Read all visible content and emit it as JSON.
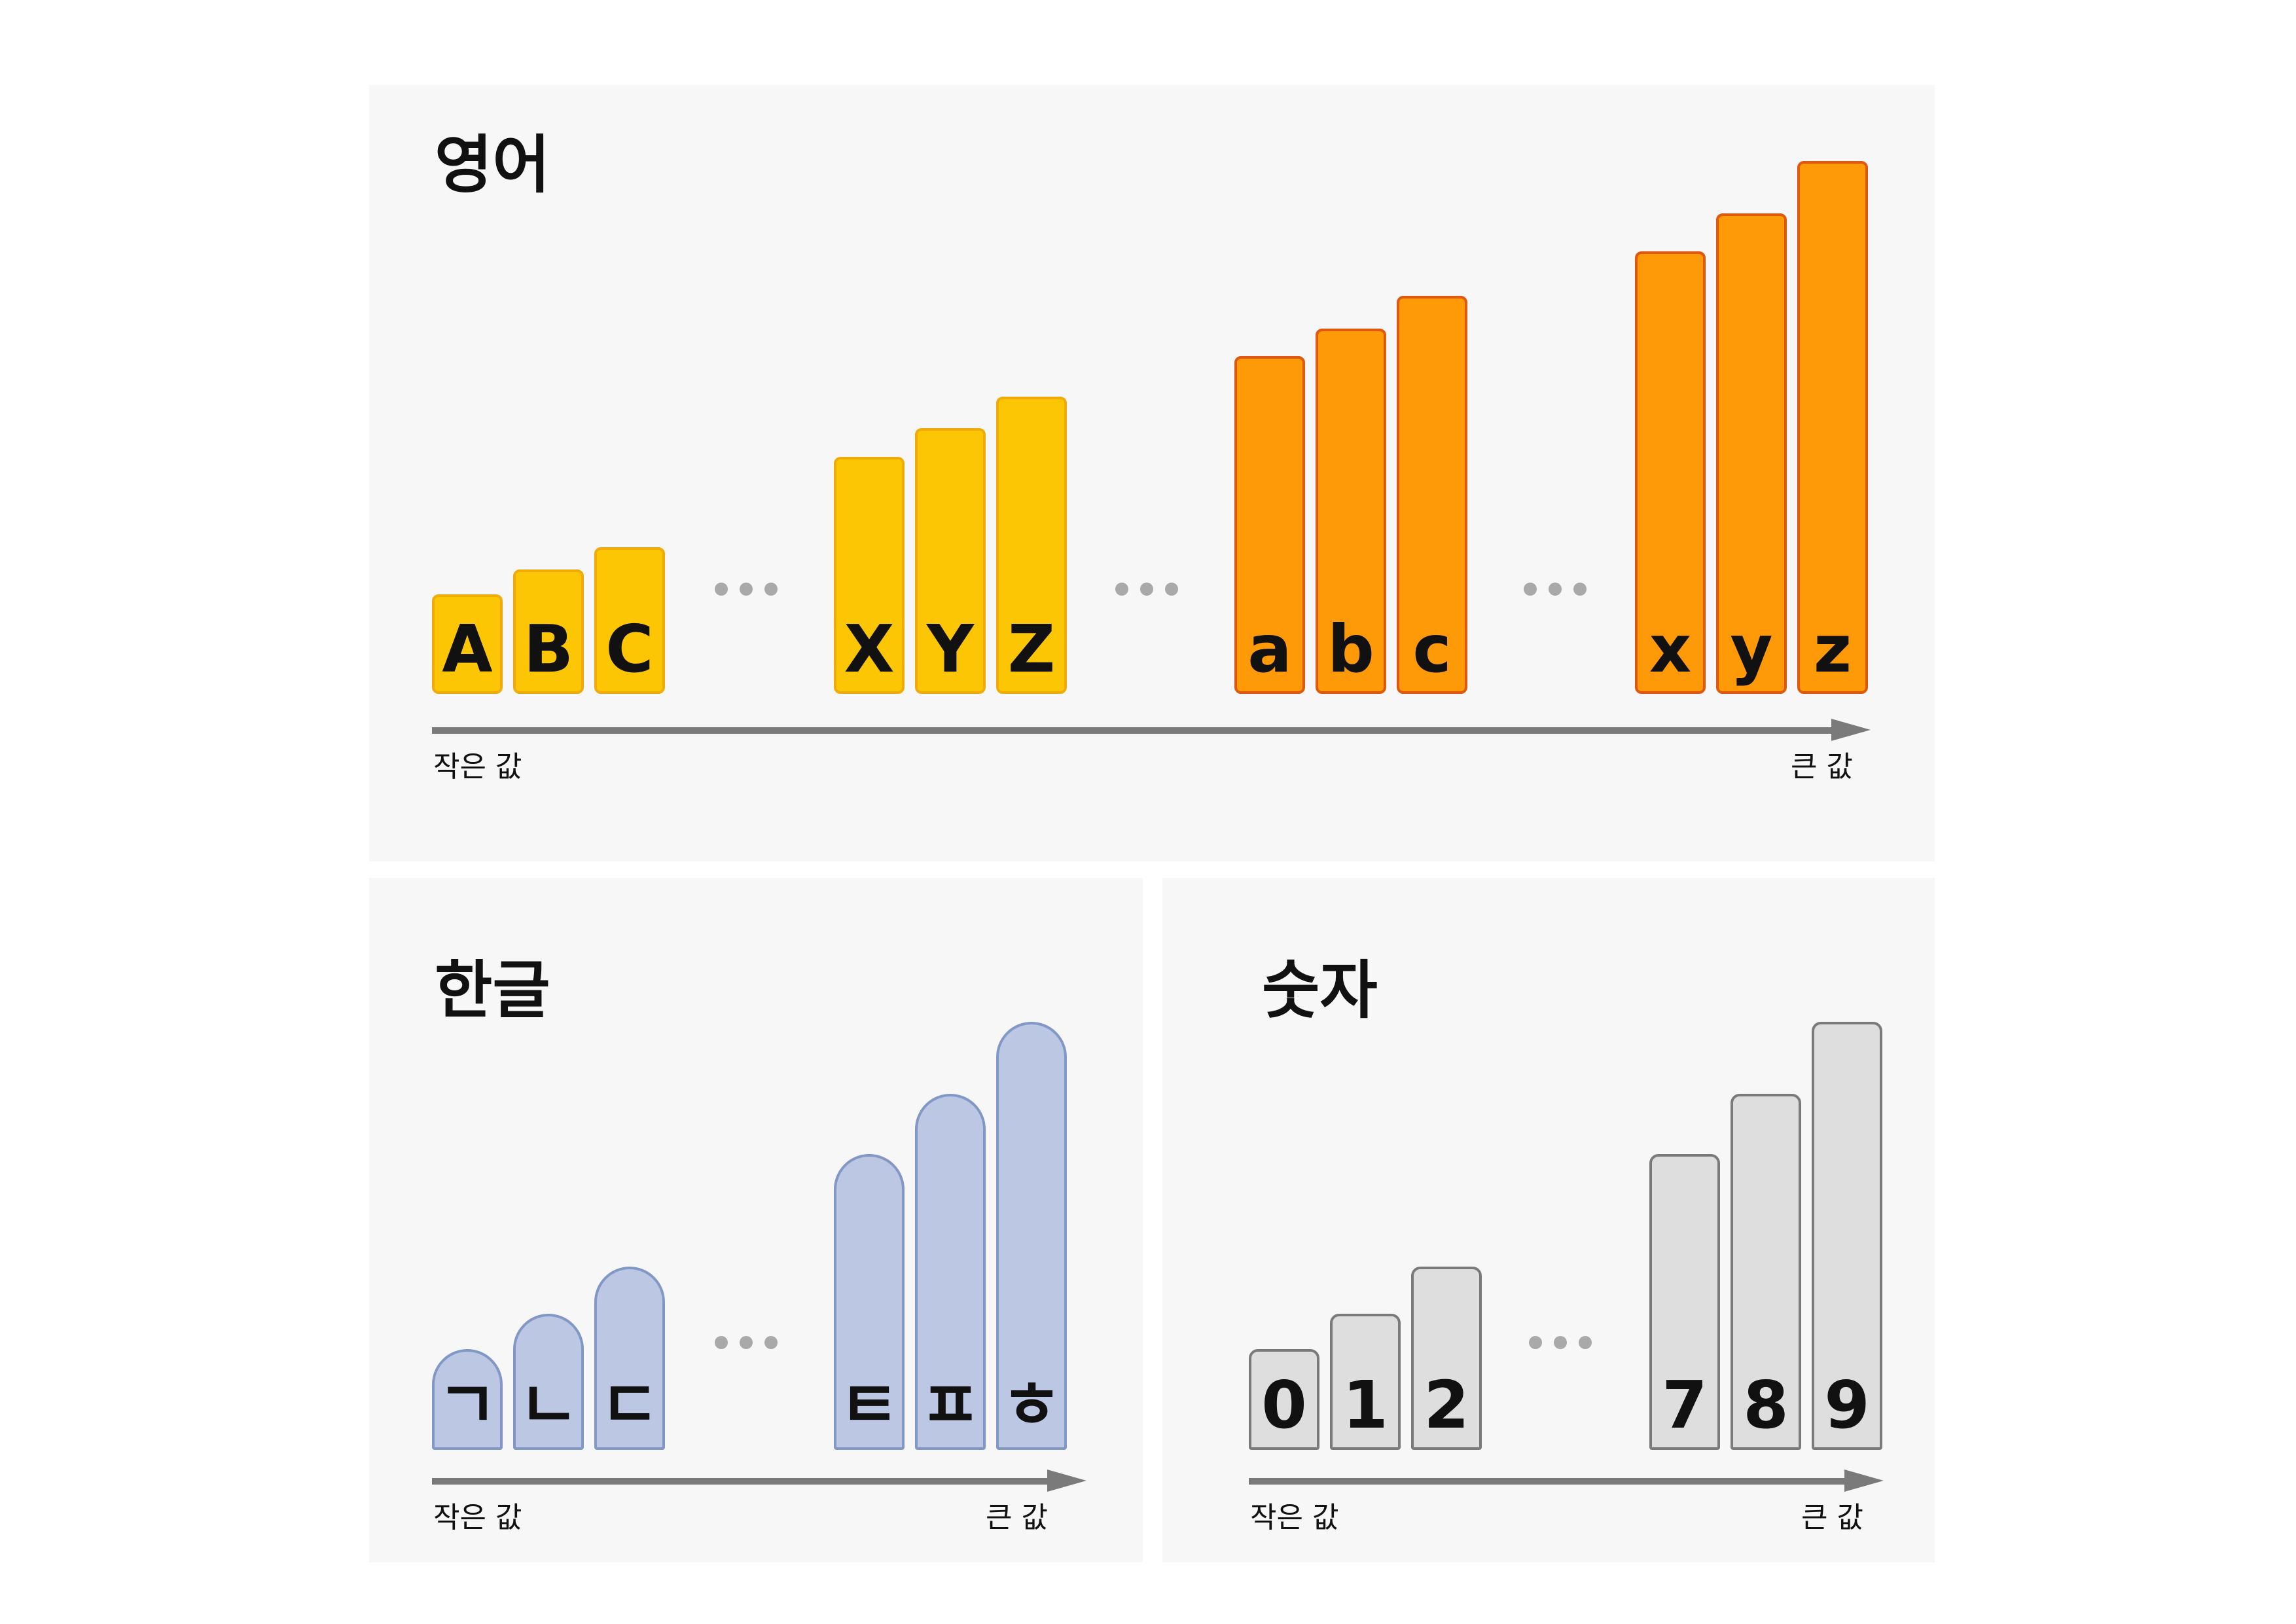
{
  "panels": {
    "english": {
      "title": "영어",
      "bars": [
        "A",
        "B",
        "C",
        "X",
        "Y",
        "Z",
        "a",
        "b",
        "c",
        "x",
        "y",
        "z"
      ],
      "axis": {
        "min_label": "작은 값",
        "max_label": "큰 값"
      }
    },
    "hangul": {
      "title": "한글",
      "bars": [
        "ㄱ",
        "ㄴ",
        "ㄷ",
        "ㅌ",
        "ㅍ",
        "ㅎ"
      ],
      "axis": {
        "min_label": "작은 값",
        "max_label": "큰 값"
      }
    },
    "numbers": {
      "title": "숫자",
      "bars": [
        "0",
        "1",
        "2",
        "7",
        "8",
        "9"
      ],
      "axis": {
        "min_label": "작은 값",
        "max_label": "큰 값"
      }
    }
  },
  "colors": {
    "uppercase_fill": "#fdc604",
    "lowercase_fill": "#fe9907",
    "hangul_fill": "#bbc7e3",
    "number_fill": "#dedede",
    "axis": "#7a7a7a",
    "panel_background": "#f7f7f7"
  }
}
